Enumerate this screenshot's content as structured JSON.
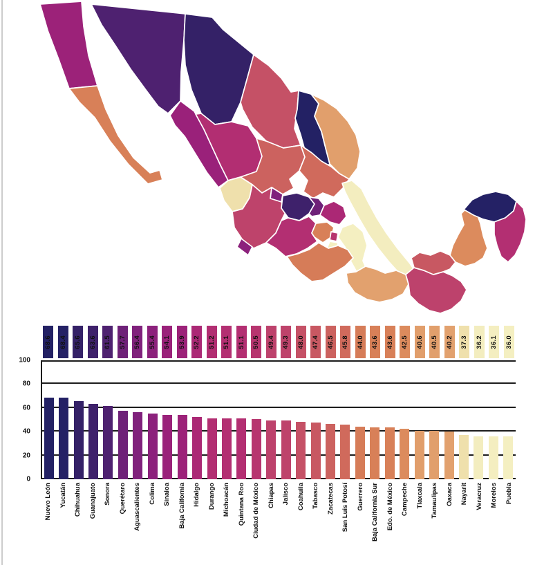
{
  "page": {
    "background": "#ffffff",
    "edge_artifact_color": "#cccccc"
  },
  "map": {
    "type": "choropleth",
    "region": "Mexico states",
    "border_color": "#ffffff",
    "states": [
      {
        "key": "nuevo-leon",
        "name": "Nuevo León",
        "value": 68.6,
        "color": "#232164"
      },
      {
        "key": "yucatan",
        "name": "Yucatán",
        "value": 68.4,
        "color": "#242165"
      },
      {
        "key": "chihuahua",
        "name": "Chihuahua",
        "value": 65.6,
        "color": "#342167"
      },
      {
        "key": "guanajuato",
        "name": "Guanajuato",
        "value": 63.6,
        "color": "#3e216b"
      },
      {
        "key": "sonora",
        "name": "Sonora",
        "value": 61.5,
        "color": "#4e2170"
      },
      {
        "key": "queretaro",
        "name": "Querétaro",
        "value": 57.7,
        "color": "#6e2178"
      },
      {
        "key": "aguascalientes",
        "name": "Aguascalientes",
        "value": 56.4,
        "color": "#80217c"
      },
      {
        "key": "colima",
        "name": "Colima",
        "value": 55.4,
        "color": "#8c217c"
      },
      {
        "key": "sinaloa",
        "name": "Sinaloa",
        "value": 54.1,
        "color": "#9a217a"
      },
      {
        "key": "baja-california",
        "name": "Baja California",
        "value": 53.9,
        "color": "#9c2279"
      },
      {
        "key": "hidalgo",
        "name": "Hidalgo",
        "value": 52.2,
        "color": "#ab2875"
      },
      {
        "key": "durango",
        "name": "Durango",
        "value": 51.2,
        "color": "#b22e72"
      },
      {
        "key": "michoacan",
        "name": "Michoacán",
        "value": 51.1,
        "color": "#b32f72"
      },
      {
        "key": "quintana-roo",
        "name": "Quintana Roo",
        "value": 51.1,
        "color": "#b32f72"
      },
      {
        "key": "ciudad-de-mexico",
        "name": "Ciudad de México",
        "value": 50.5,
        "color": "#b7356f"
      },
      {
        "key": "chiapas",
        "name": "Chiapas",
        "value": 49.4,
        "color": "#bd426c"
      },
      {
        "key": "jalisco",
        "name": "Jalisco",
        "value": 49.3,
        "color": "#be436b"
      },
      {
        "key": "coahuila",
        "name": "Coahuila",
        "value": 48.0,
        "color": "#c55166"
      },
      {
        "key": "tabasco",
        "name": "Tabasco",
        "value": 47.4,
        "color": "#c85862"
      },
      {
        "key": "zacatecas",
        "name": "Zacatecas",
        "value": 46.5,
        "color": "#cc625f"
      },
      {
        "key": "san-luis-potosi",
        "name": "San Luis Potosí",
        "value": 45.8,
        "color": "#d06a5c"
      },
      {
        "key": "guerrero",
        "name": "Guerrero",
        "value": 44.0,
        "color": "#d67c58"
      },
      {
        "key": "baja-california-sur",
        "name": "Baja California Sur",
        "value": 43.6,
        "color": "#d88058"
      },
      {
        "key": "edo-de-mexico",
        "name": "Edo. de México",
        "value": 43.6,
        "color": "#d88058"
      },
      {
        "key": "campeche",
        "name": "Campeche",
        "value": 42.5,
        "color": "#dc8b5d"
      },
      {
        "key": "tlaxcala",
        "name": "Tlaxcala",
        "value": 40.6,
        "color": "#e19e6b"
      },
      {
        "key": "tamaulipas",
        "name": "Tamaulipas",
        "value": 40.5,
        "color": "#e19f6c"
      },
      {
        "key": "oaxaca",
        "name": "Oaxaca",
        "value": 40.2,
        "color": "#e2a16e"
      },
      {
        "key": "nayarit",
        "name": "Nayarit",
        "value": 37.3,
        "color": "#efe0ac"
      },
      {
        "key": "veracruz",
        "name": "Veracruz",
        "value": 36.2,
        "color": "#f3edbf"
      },
      {
        "key": "morelos",
        "name": "Morelos",
        "value": 36.1,
        "color": "#f4eec0"
      },
      {
        "key": "puebla",
        "name": "Puebla",
        "value": 36.0,
        "color": "#f4efc1"
      }
    ]
  },
  "chart_data": {
    "type": "bar",
    "title": "",
    "xlabel": "",
    "ylabel": "",
    "categories": [
      "Nuevo León",
      "Yucatán",
      "Chihuahua",
      "Guanajuato",
      "Sonora",
      "Querétaro",
      "Aguascalientes",
      "Colima",
      "Sinaloa",
      "Baja California",
      "Hidalgo",
      "Durango",
      "Michoacán",
      "Quintana Roo",
      "Ciudad de México",
      "Chiapas",
      "Jalisco",
      "Coahuila",
      "Tabasco",
      "Zacatecas",
      "San Luis Potosí",
      "Guerrero",
      "Baja California Sur",
      "Edo. de México",
      "Campeche",
      "Tlaxcala",
      "Tamaulipas",
      "Oaxaca",
      "Nayarit",
      "Veracruz",
      "Morelos",
      "Puebla"
    ],
    "values": [
      68.6,
      68.4,
      65.6,
      63.6,
      61.5,
      57.7,
      56.4,
      55.4,
      54.1,
      53.9,
      52.2,
      51.2,
      51.1,
      51.1,
      50.5,
      49.4,
      49.3,
      48.0,
      47.4,
      46.5,
      45.8,
      44.0,
      43.6,
      43.6,
      42.5,
      40.6,
      40.5,
      40.2,
      37.3,
      36.2,
      36.1,
      36.0
    ],
    "colors": [
      "#232164",
      "#242165",
      "#342167",
      "#3e216b",
      "#4e2170",
      "#6e2178",
      "#80217c",
      "#8c217c",
      "#9a217a",
      "#9c2279",
      "#ab2875",
      "#b22e72",
      "#b32f72",
      "#b32f72",
      "#b7356f",
      "#bd426c",
      "#be436b",
      "#c55166",
      "#c85862",
      "#cc625f",
      "#d06a5c",
      "#d67c58",
      "#d88058",
      "#d88058",
      "#dc8b5d",
      "#e19e6b",
      "#e19f6c",
      "#e2a16e",
      "#efe0ac",
      "#f3edbf",
      "#f4eec0",
      "#f4efc1"
    ],
    "ylim": [
      0,
      100
    ],
    "yticks": [
      0,
      20,
      40,
      60,
      80,
      100
    ],
    "grid": true,
    "gridline_color": "#1c1c1c",
    "legend": false,
    "value_labels": "rotated chips above plot, bar-colored background",
    "xtick_rotation": 90
  }
}
